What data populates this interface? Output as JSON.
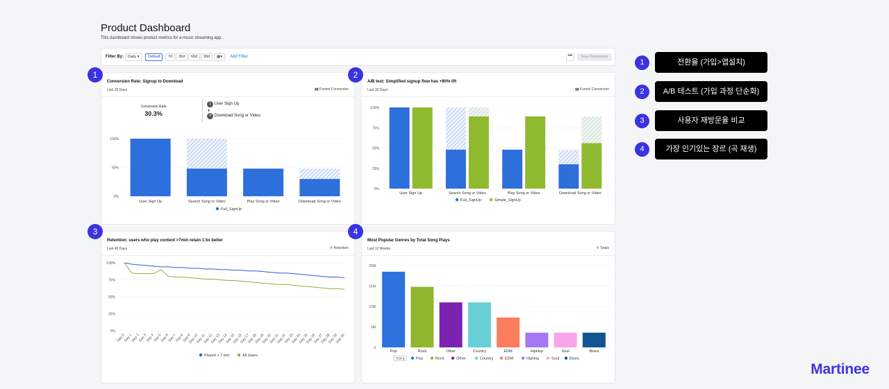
{
  "page": {
    "title": "Product Dashboard",
    "subtitle": "This dashboard shows product metrics for a music streaming app."
  },
  "filter": {
    "label": "Filter By:",
    "granularity": "Daily",
    "ranges": [
      "Default",
      "7d",
      "30d",
      "60d",
      "90d"
    ],
    "selected_range": "Default",
    "add_filter": "Add Filter",
    "more": "•••",
    "save": "Save Parameters"
  },
  "cards": {
    "conversion": {
      "badge": "1",
      "title": "Conversion Rate: Signup to Download",
      "range": "Last 30 Days",
      "type_label": "Funnel Conversion",
      "metric_label": "Conversion Rate",
      "metric_value": "30.3%",
      "steps": [
        {
          "num": "1",
          "label": "User Sign Up"
        },
        {
          "num": "4",
          "label": "Download Song or Video"
        }
      ]
    },
    "abtest": {
      "badge": "2",
      "title": "A/B test: Simplified signup flow has +90% lift",
      "range": "Last 30 Days",
      "type_label": "Funnel Conversion"
    },
    "retention": {
      "badge": "3",
      "title": "Retention: users who play content >7min retain 1.5x better",
      "range": "Last 45 Days",
      "type_label": "Retention"
    },
    "genres": {
      "badge": "4",
      "title": "Most Popular Genres by Total Song Plays",
      "range": "Last 12 Weeks",
      "type_label": "Totals"
    }
  },
  "chart_data": [
    {
      "id": "conversion",
      "type": "bar",
      "categories": [
        "User Sign Up",
        "Search Song or Video",
        "Play Song or Video",
        "Download Song or Video"
      ],
      "series": [
        {
          "name": "Full_SignUp",
          "values": [
            100,
            48,
            48,
            30
          ],
          "dropoff_to": [
            100,
            100,
            48,
            48
          ]
        }
      ],
      "ylim": [
        0,
        100
      ],
      "yticks": [
        "0%",
        "50%",
        "100%"
      ],
      "colors": {
        "bar": "#2d6fdb",
        "hatch": "#a9c2ec"
      }
    },
    {
      "id": "abtest",
      "type": "bar",
      "categories": [
        "User Sign Up",
        "Search Song or Video",
        "Play Song or Video",
        "Download Song or Video"
      ],
      "series": [
        {
          "name": "Full_SignUp",
          "values": [
            100,
            48,
            48,
            30
          ],
          "dropoff_to": [
            100,
            100,
            48,
            48
          ],
          "color": "#2d6fdb"
        },
        {
          "name": "Simple_SignUp",
          "values": [
            100,
            89,
            89,
            56
          ],
          "dropoff_to": [
            100,
            100,
            89,
            89
          ],
          "color": "#8fba2f"
        }
      ],
      "ylim": [
        0,
        100
      ],
      "yticks": [
        "0%",
        "25%",
        "50%",
        "75%",
        "100%"
      ]
    },
    {
      "id": "retention",
      "type": "line",
      "x": [
        "Day 0",
        "Day 1",
        "Day 2",
        "Day 3",
        "Day 4",
        "Day 5",
        "Day 6",
        "Day 7",
        "Day 8",
        "Day 9",
        "Day 10",
        "Day 11",
        "Day 12",
        "Day 13",
        "Day 14",
        "Day 15",
        "Day 16",
        "Day 17",
        "Day 18",
        "Day 19",
        "Day 20",
        "Day 21",
        "Day 22",
        "Day 23",
        "Day 24",
        "Day 25",
        "Day 26",
        "Day 27",
        "Day 28",
        "Day 29",
        "Day 30"
      ],
      "series": [
        {
          "name": "Played > 7 min",
          "color": "#2d5bd0",
          "values": [
            100,
            98,
            97,
            96,
            95,
            94,
            94,
            93,
            93,
            92,
            92,
            91,
            91,
            90,
            90,
            89,
            89,
            88,
            88,
            87,
            86,
            85,
            85,
            84,
            83,
            82,
            81,
            80,
            79,
            79,
            78
          ]
        },
        {
          "name": "All Users",
          "color": "#8db03a",
          "values": [
            100,
            85,
            84,
            84,
            84,
            90,
            80,
            79,
            79,
            78,
            77,
            76,
            76,
            75,
            74,
            74,
            73,
            72,
            71,
            70,
            69,
            68,
            68,
            67,
            66,
            65,
            64,
            63,
            62,
            62,
            61
          ]
        }
      ],
      "ylim": [
        0,
        100
      ],
      "yticks": [
        "0%",
        "25%",
        "50%",
        "75%",
        "100%"
      ]
    },
    {
      "id": "genres",
      "type": "bar",
      "categories": [
        "Pop",
        "Rock",
        "Other",
        "Country",
        "EDM",
        "HipHop",
        "Soul",
        "Blues"
      ],
      "values": [
        18.5,
        14.8,
        11.0,
        11.0,
        7.3,
        3.6,
        3.6,
        3.6
      ],
      "colors": [
        "#2c74db",
        "#8fb72d",
        "#7d22b0",
        "#66d0d6",
        "#fb7d5b",
        "#a478f2",
        "#f8a5ea",
        "#11548f"
      ],
      "ylim": [
        0,
        20
      ],
      "yticks": [
        "0",
        "5M",
        "10M",
        "15M",
        "20M"
      ],
      "legend_tag": "TOP 8"
    }
  ],
  "annotations": [
    {
      "num": "1",
      "text": "전환율 (가입>앱설치)"
    },
    {
      "num": "2",
      "text": "A/B 테스트 (가입 과정 단순화)"
    },
    {
      "num": "3",
      "text": "사용자 재방문율 비교"
    },
    {
      "num": "4",
      "text": "가장 인기있는 장르 (곡 재생)"
    }
  ],
  "brand": "Martinee"
}
